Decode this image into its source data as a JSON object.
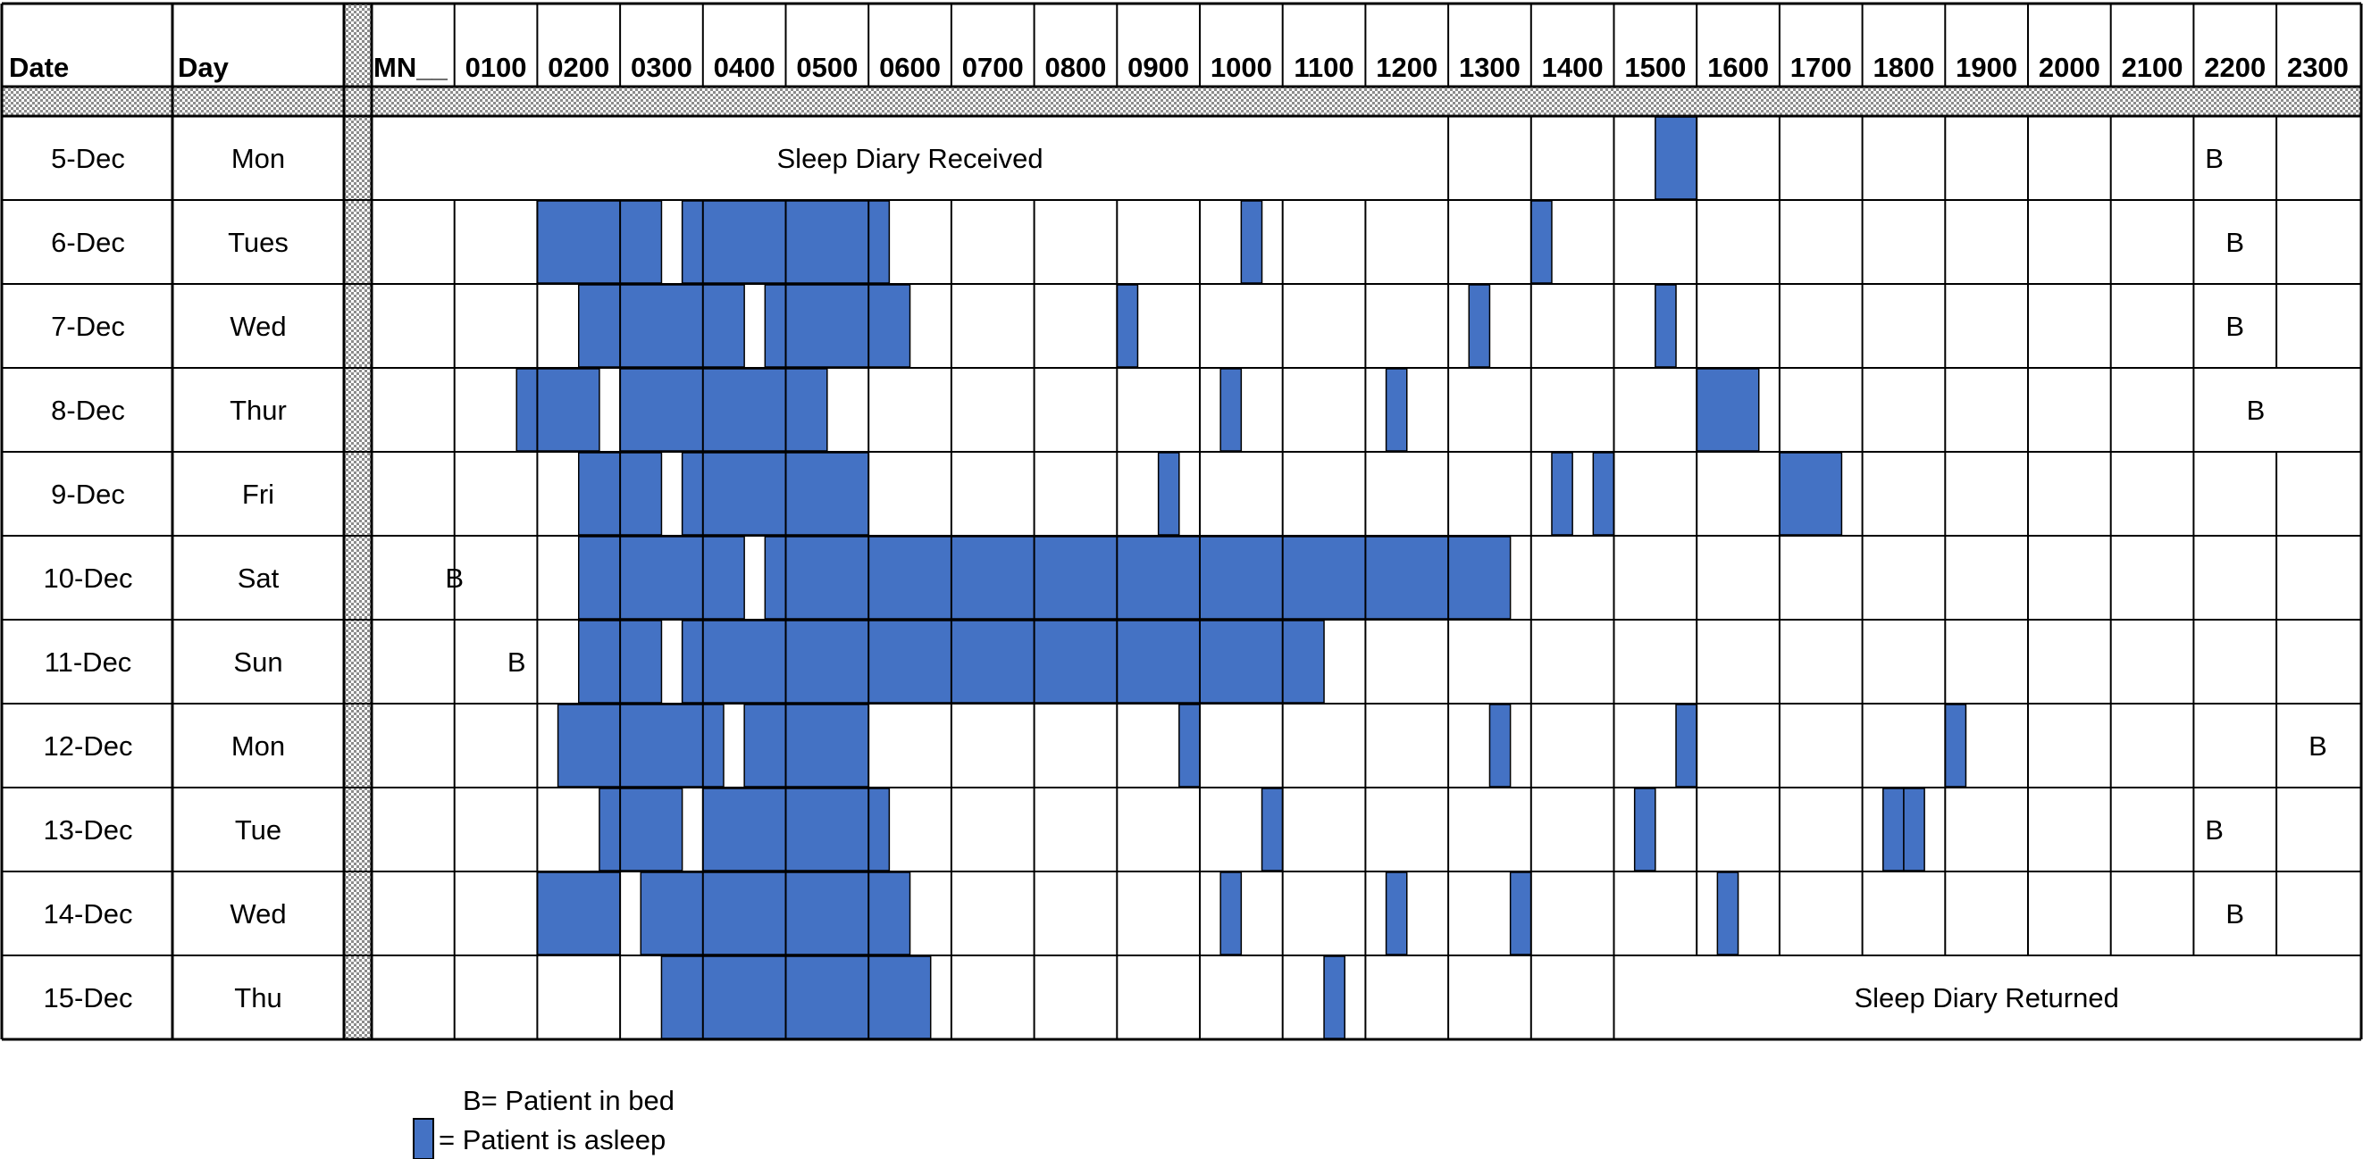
{
  "legend": {
    "bed_text": "B= Patient in bed",
    "asleep_text": "= Patient is asleep"
  },
  "colors": {
    "asleep": "#4472c4",
    "hatch": "#8c8c8c"
  },
  "chart_data": {
    "type": "table",
    "headers": {
      "date": "Date",
      "day": "Day"
    },
    "hours": [
      "MN__",
      "0100",
      "0200",
      "0300",
      "0400",
      "0500",
      "0600",
      "0700",
      "0800",
      "0900",
      "1000",
      "1100",
      "1200",
      "1300",
      "1400",
      "1500",
      "1600",
      "1700",
      "1800",
      "1900",
      "2000",
      "2100",
      "2200",
      "2300"
    ],
    "rows": [
      {
        "date": "5-Dec",
        "day": "Mon",
        "notes": [
          {
            "text": "Sleep Diary Received",
            "from": 0,
            "to": 13
          }
        ],
        "asleep": [
          [
            15.5,
            16.0
          ]
        ],
        "bed": [
          22.25
        ]
      },
      {
        "date": "6-Dec",
        "day": "Tues",
        "asleep": [
          [
            2.0,
            3.5
          ],
          [
            3.75,
            6.25
          ],
          [
            10.5,
            10.75
          ],
          [
            14.0,
            14.25
          ]
        ],
        "bed": [
          22.5
        ]
      },
      {
        "date": "7-Dec",
        "day": "Wed",
        "asleep": [
          [
            2.5,
            4.5
          ],
          [
            4.75,
            6.5
          ],
          [
            9.0,
            9.25
          ],
          [
            13.25,
            13.5
          ],
          [
            15.5,
            15.75
          ]
        ],
        "bed": [
          22.5
        ]
      },
      {
        "date": "8-Dec",
        "day": "Thur",
        "asleep": [
          [
            1.75,
            2.75
          ],
          [
            3.0,
            5.5
          ],
          [
            10.25,
            10.5
          ],
          [
            12.25,
            12.5
          ],
          [
            16.0,
            16.75
          ]
        ],
        "bed": [
          22.75
        ]
      },
      {
        "date": "9-Dec",
        "day": "Fri",
        "asleep": [
          [
            2.5,
            3.5
          ],
          [
            3.75,
            6.0
          ],
          [
            9.5,
            9.75
          ],
          [
            14.25,
            14.5
          ],
          [
            14.75,
            15.0
          ],
          [
            17.0,
            17.75
          ]
        ],
        "bed": []
      },
      {
        "date": "10-Dec",
        "day": "Sat",
        "asleep": [
          [
            2.5,
            4.5
          ],
          [
            4.75,
            13.75
          ]
        ],
        "bed": [
          1.0
        ]
      },
      {
        "date": "11-Dec",
        "day": "Sun",
        "asleep": [
          [
            2.5,
            3.5
          ],
          [
            3.75,
            11.5
          ]
        ],
        "bed": [
          1.75
        ]
      },
      {
        "date": "12-Dec",
        "day": "Mon",
        "asleep": [
          [
            2.25,
            4.25
          ],
          [
            4.5,
            6.0
          ],
          [
            9.75,
            10.0
          ],
          [
            13.5,
            13.75
          ],
          [
            15.75,
            16.0
          ],
          [
            19.0,
            19.25
          ]
        ],
        "bed": [
          23.5
        ]
      },
      {
        "date": "13-Dec",
        "day": "Tue",
        "asleep": [
          [
            2.75,
            3.75
          ],
          [
            4.0,
            6.25
          ],
          [
            10.75,
            11.0
          ],
          [
            15.25,
            15.5
          ],
          [
            18.25,
            18.5
          ],
          [
            18.5,
            18.75
          ]
        ],
        "bed": [
          22.25
        ]
      },
      {
        "date": "14-Dec",
        "day": "Wed",
        "asleep": [
          [
            2.0,
            3.0
          ],
          [
            3.25,
            6.5
          ],
          [
            10.25,
            10.5
          ],
          [
            12.25,
            12.5
          ],
          [
            13.75,
            14.0
          ],
          [
            16.25,
            16.5
          ]
        ],
        "bed": [
          22.5
        ]
      },
      {
        "date": "15-Dec",
        "day": "Thu",
        "notes": [
          {
            "text": "Sleep Diary Returned",
            "from": 15,
            "to": 24
          }
        ],
        "asleep": [
          [
            3.5,
            6.75
          ],
          [
            11.5,
            11.75
          ]
        ],
        "bed": []
      }
    ]
  }
}
